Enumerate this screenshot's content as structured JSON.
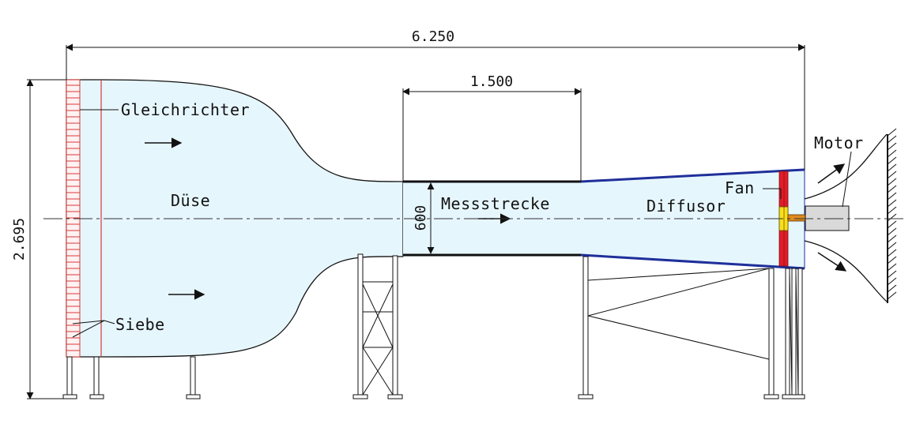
{
  "dimensions": {
    "total_length": "6.250",
    "test_section_length": "1.500",
    "total_height": "2.695",
    "test_section_height": "600"
  },
  "labels": {
    "flow_straightener": "Gleichrichter",
    "nozzle": "Düse",
    "screens": "Siebe",
    "test_section": "Messstrecke",
    "diffuser": "Diffusor",
    "fan": "Fan",
    "motor": "Motor"
  },
  "colors": {
    "air": "#e6f6fd",
    "diffuser_edge": "#1f2f9a",
    "fan": "#e11d2a",
    "hub": "#f5e11a",
    "shaft": "#e08a1e",
    "motor": "#d9d9d9",
    "straightener_lines": "#d43a3a"
  }
}
